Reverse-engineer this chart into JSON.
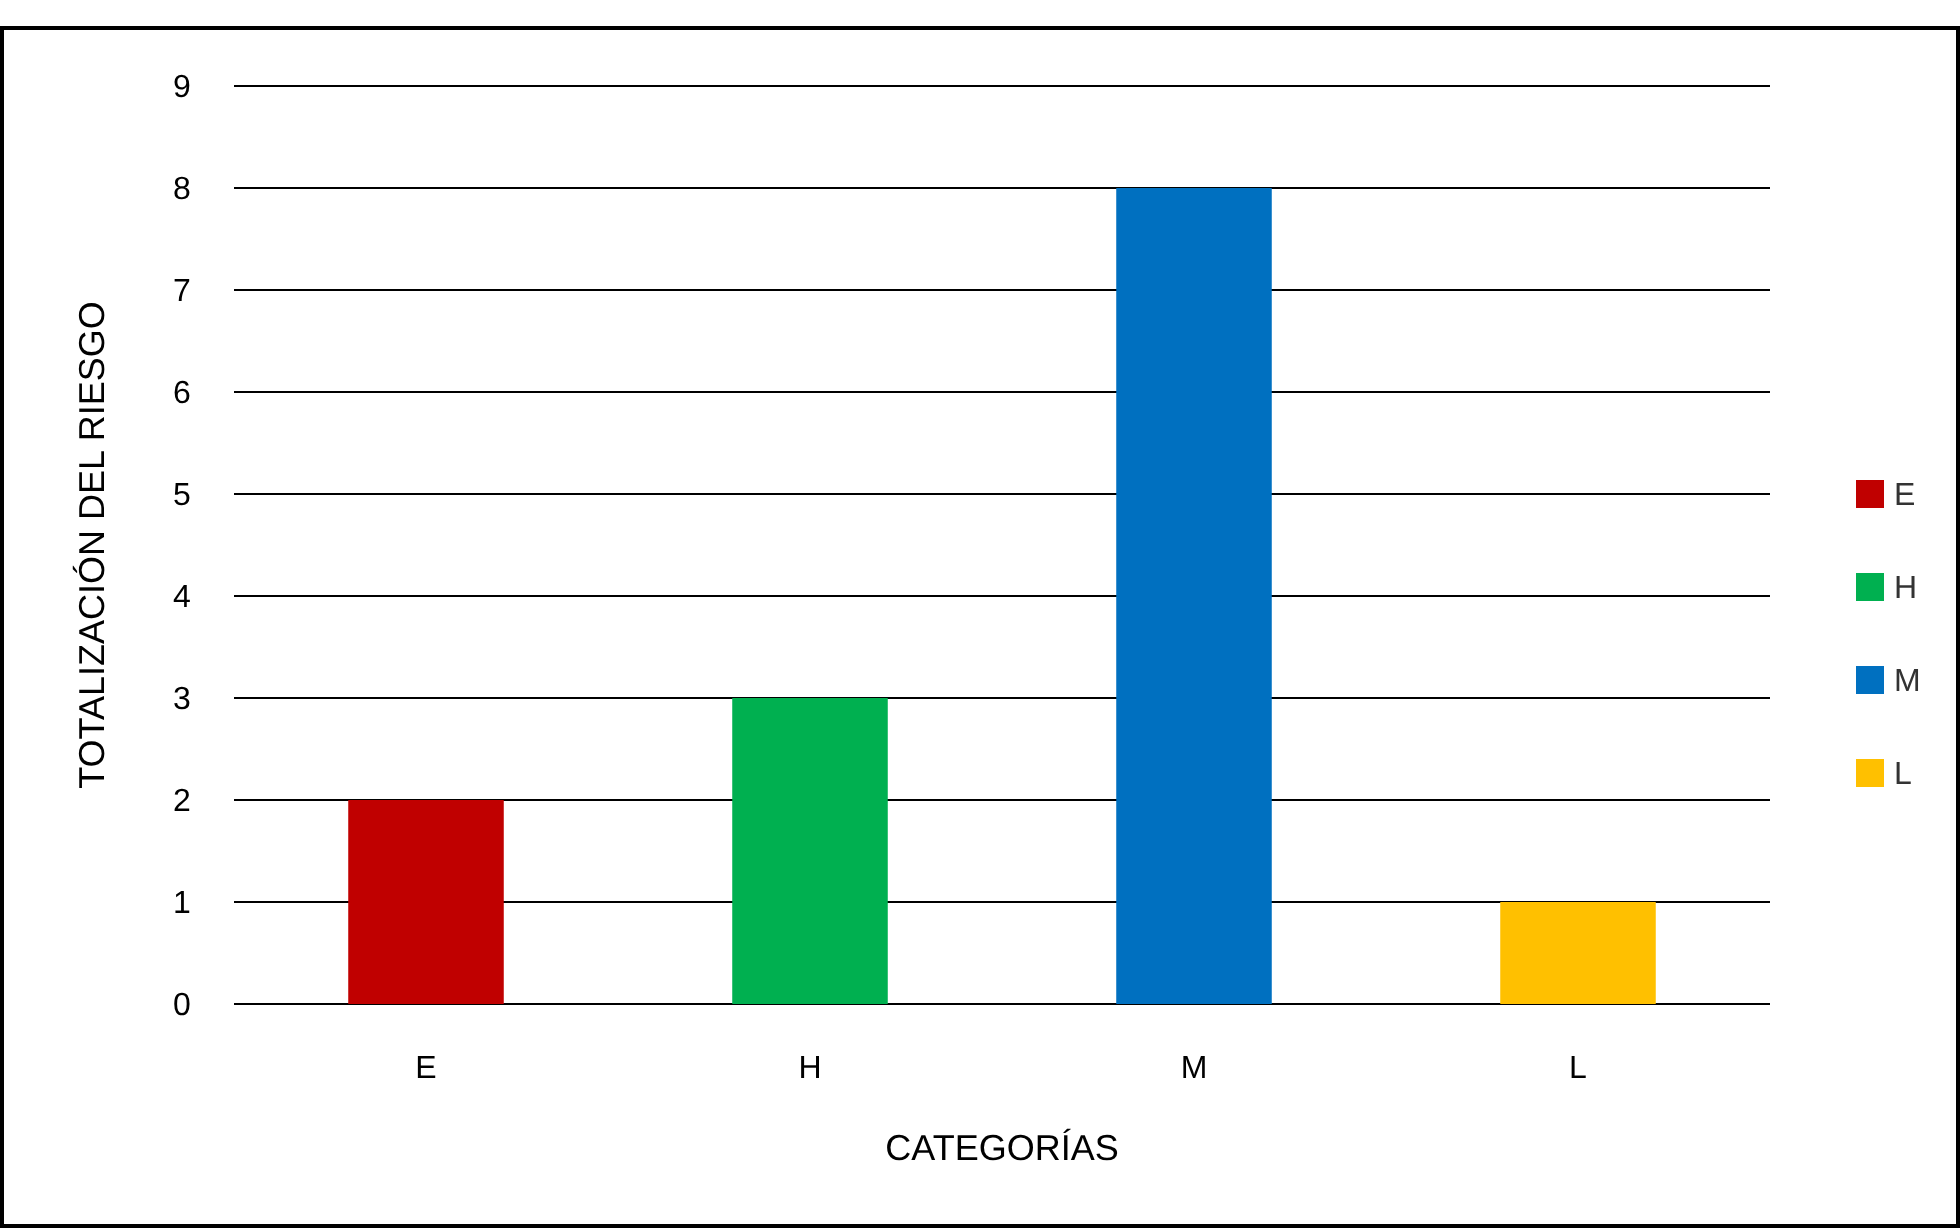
{
  "chart_data": {
    "type": "bar",
    "xlabel": "CATEGORÍAS",
    "ylabel": "TOTALIZACIÓN DEL RIESGO",
    "categories": [
      "E",
      "H",
      "M",
      "L"
    ],
    "series": [
      {
        "name": "E",
        "color": "#c00000",
        "values": [
          2,
          null,
          null,
          null
        ]
      },
      {
        "name": "H",
        "color": "#00b050",
        "values": [
          null,
          3,
          null,
          null
        ]
      },
      {
        "name": "M",
        "color": "#0070c0",
        "values": [
          null,
          null,
          8,
          null
        ]
      },
      {
        "name": "L",
        "color": "#ffc000",
        "values": [
          null,
          null,
          null,
          1
        ]
      }
    ],
    "ylim": [
      0,
      9
    ],
    "yticks": [
      0,
      1,
      2,
      3,
      4,
      5,
      6,
      7,
      8,
      9
    ],
    "grid": "y",
    "legend": "right"
  }
}
